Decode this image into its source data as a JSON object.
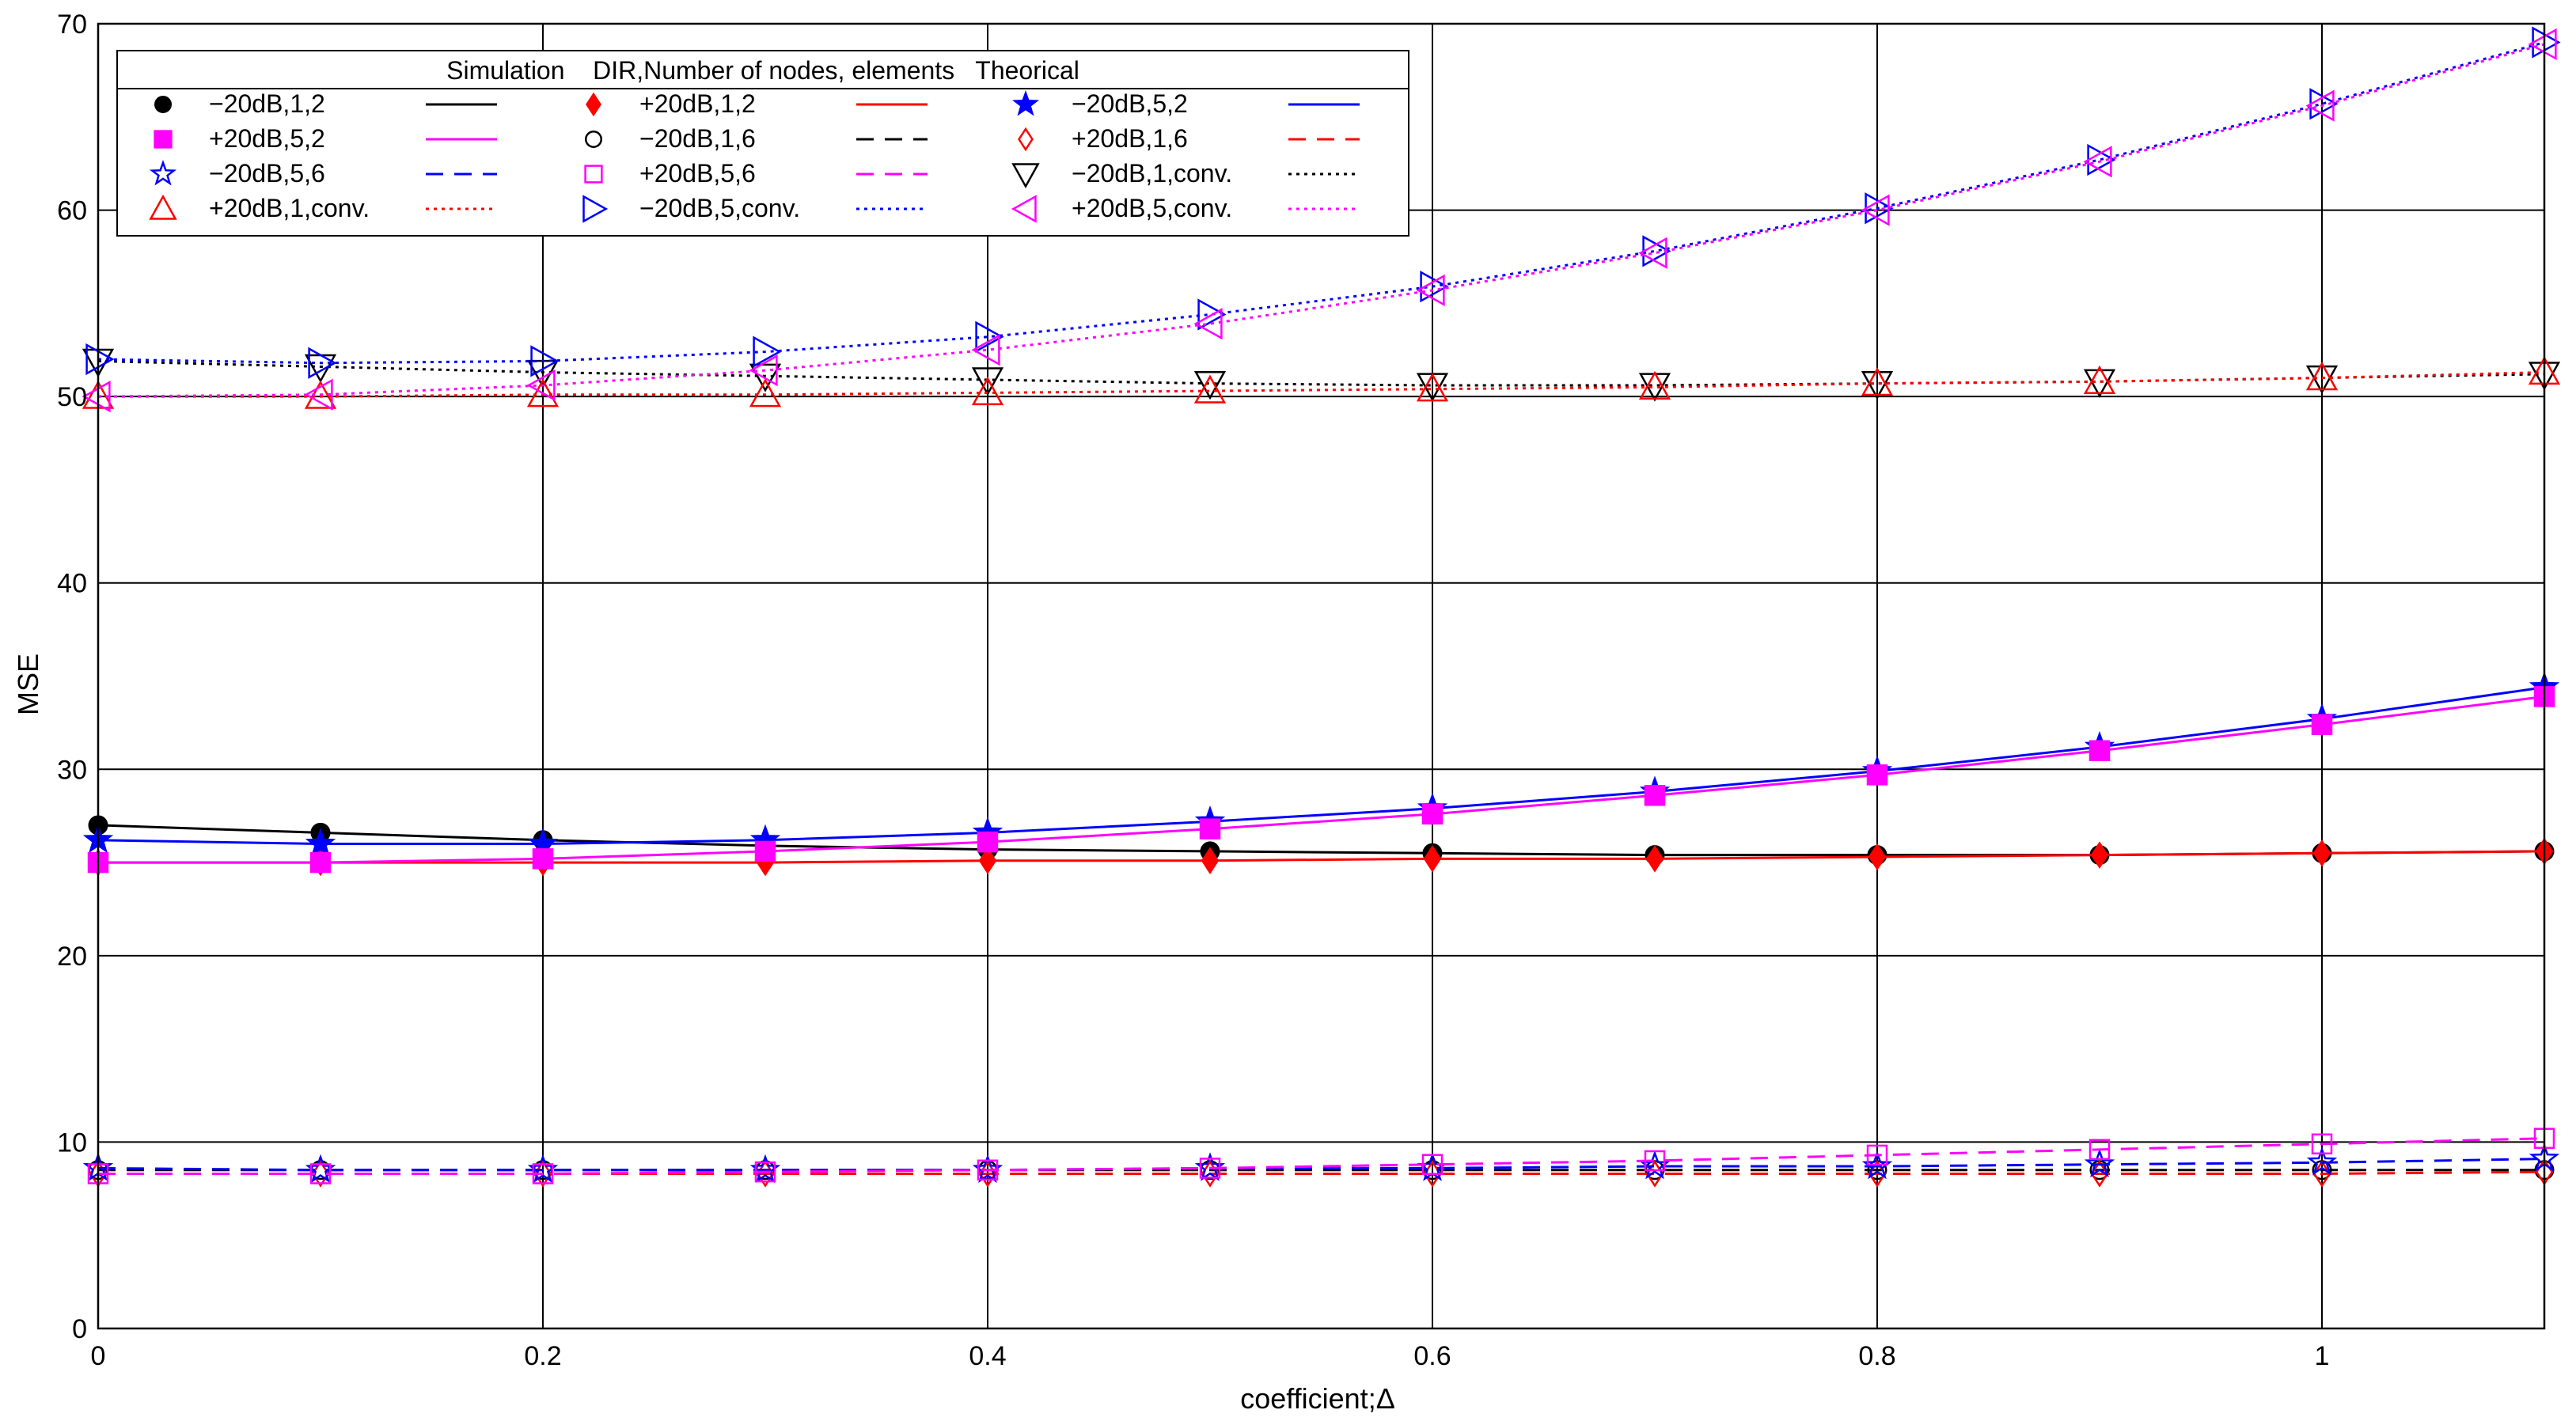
{
  "chart_data": {
    "type": "line",
    "title": "",
    "xlabel": "coefficient;Δ",
    "ylabel": "MSE",
    "xlim": [
      0,
      1.1
    ],
    "ylim": [
      0,
      70
    ],
    "x_ticks": [
      0,
      0.2,
      0.4,
      0.6,
      0.8,
      1
    ],
    "x_tick_labels": [
      "0",
      "0.2",
      "0.4",
      "0.6",
      "0.8",
      "1"
    ],
    "y_ticks": [
      0,
      10,
      20,
      30,
      40,
      50,
      60,
      70
    ],
    "y_tick_labels": [
      "0",
      "10",
      "20",
      "30",
      "40",
      "50",
      "60",
      "70"
    ],
    "grid": true,
    "legend_placement": "top-left",
    "legend_header": "Simulation    DIR,Number of nodes, elements   Theorical",
    "x": [
      0,
      0.1,
      0.2,
      0.3,
      0.4,
      0.5,
      0.6,
      0.7,
      0.8,
      0.9,
      1.0,
      1.1
    ],
    "series": [
      {
        "name": "−20dB,1,2",
        "color": "#000000",
        "marker": "circle-filled",
        "linestyle": "solid",
        "sim": [
          27.0,
          26.6,
          26.2,
          25.9,
          25.7,
          25.6,
          25.5,
          25.4,
          25.4,
          25.4,
          25.5,
          25.6
        ],
        "theory": [
          27.0,
          26.6,
          26.2,
          25.9,
          25.7,
          25.6,
          25.5,
          25.4,
          25.4,
          25.4,
          25.5,
          25.6
        ]
      },
      {
        "name": "+20dB,1,2",
        "color": "#ff0000",
        "marker": "diamond-filled",
        "linestyle": "solid",
        "sim": [
          25.0,
          25.0,
          25.0,
          25.0,
          25.1,
          25.1,
          25.2,
          25.2,
          25.3,
          25.4,
          25.5,
          25.6
        ],
        "theory": [
          25.0,
          25.0,
          25.0,
          25.0,
          25.1,
          25.1,
          25.2,
          25.2,
          25.3,
          25.4,
          25.5,
          25.6
        ]
      },
      {
        "name": "−20dB,5,2",
        "color": "#0000ff",
        "marker": "star-filled",
        "linestyle": "solid",
        "sim": [
          26.2,
          26.0,
          26.0,
          26.2,
          26.6,
          27.2,
          27.9,
          28.8,
          29.9,
          31.2,
          32.7,
          34.4
        ],
        "theory": [
          26.2,
          26.0,
          26.0,
          26.2,
          26.6,
          27.2,
          27.9,
          28.8,
          29.9,
          31.2,
          32.7,
          34.4
        ]
      },
      {
        "name": "+20dB,5,2",
        "color": "#ff00ff",
        "marker": "square-filled",
        "linestyle": "solid",
        "sim": [
          25.0,
          25.0,
          25.2,
          25.6,
          26.1,
          26.8,
          27.6,
          28.6,
          29.7,
          31.0,
          32.4,
          33.9
        ],
        "theory": [
          25.0,
          25.0,
          25.2,
          25.6,
          26.1,
          26.8,
          27.6,
          28.6,
          29.7,
          31.0,
          32.4,
          33.9
        ]
      },
      {
        "name": "−20dB,1,6",
        "color": "#000000",
        "marker": "circle-open",
        "linestyle": "dashed",
        "sim": [
          8.5,
          8.5,
          8.5,
          8.5,
          8.5,
          8.5,
          8.5,
          8.5,
          8.5,
          8.5,
          8.5,
          8.5
        ],
        "theory": [
          8.5,
          8.5,
          8.5,
          8.5,
          8.5,
          8.5,
          8.5,
          8.5,
          8.5,
          8.5,
          8.5,
          8.5
        ]
      },
      {
        "name": "+20dB,1,6",
        "color": "#ff0000",
        "marker": "diamond-open",
        "linestyle": "dashed",
        "sim": [
          8.3,
          8.3,
          8.3,
          8.3,
          8.3,
          8.3,
          8.3,
          8.3,
          8.3,
          8.3,
          8.3,
          8.4
        ],
        "theory": [
          8.3,
          8.3,
          8.3,
          8.3,
          8.3,
          8.3,
          8.3,
          8.3,
          8.3,
          8.3,
          8.3,
          8.4
        ]
      },
      {
        "name": "−20dB,5,6",
        "color": "#0000ff",
        "marker": "star-open",
        "linestyle": "dashed",
        "sim": [
          8.6,
          8.5,
          8.5,
          8.5,
          8.5,
          8.6,
          8.6,
          8.7,
          8.7,
          8.8,
          8.9,
          9.1
        ],
        "theory": [
          8.6,
          8.5,
          8.5,
          8.5,
          8.5,
          8.6,
          8.6,
          8.7,
          8.7,
          8.8,
          8.9,
          9.1
        ]
      },
      {
        "name": "+20dB,5,6",
        "color": "#ff00ff",
        "marker": "square-open",
        "linestyle": "dashed",
        "sim": [
          8.3,
          8.3,
          8.3,
          8.4,
          8.5,
          8.6,
          8.8,
          9.0,
          9.3,
          9.6,
          9.9,
          10.2
        ],
        "theory": [
          8.3,
          8.3,
          8.3,
          8.4,
          8.5,
          8.6,
          8.8,
          9.0,
          9.3,
          9.6,
          9.9,
          10.2
        ]
      },
      {
        "name": "−20dB,1,conv.",
        "color": "#000000",
        "marker": "triangle-down-open",
        "linestyle": "dotted",
        "sim": [
          51.9,
          51.6,
          51.3,
          51.1,
          50.9,
          50.7,
          50.6,
          50.6,
          50.7,
          50.8,
          51.0,
          51.2
        ],
        "theory": [
          51.9,
          51.6,
          51.3,
          51.1,
          50.9,
          50.7,
          50.6,
          50.6,
          50.7,
          50.8,
          51.0,
          51.2
        ]
      },
      {
        "name": "+20dB,1,conv.",
        "color": "#ff0000",
        "marker": "triangle-up-open",
        "linestyle": "dotted",
        "sim": [
          50.0,
          50.0,
          50.1,
          50.1,
          50.2,
          50.3,
          50.4,
          50.5,
          50.7,
          50.8,
          51.0,
          51.3
        ],
        "theory": [
          50.0,
          50.0,
          50.1,
          50.1,
          50.2,
          50.3,
          50.4,
          50.5,
          50.7,
          50.8,
          51.0,
          51.3
        ]
      },
      {
        "name": "−20dB,5,conv.",
        "color": "#0000ff",
        "marker": "triangle-right-open",
        "linestyle": "dotted",
        "sim": [
          52.0,
          51.8,
          51.9,
          52.4,
          53.2,
          54.4,
          55.9,
          57.8,
          60.1,
          62.7,
          65.7,
          69.0
        ],
        "theory": [
          52.0,
          51.8,
          51.9,
          52.4,
          53.2,
          54.4,
          55.9,
          57.8,
          60.1,
          62.7,
          65.7,
          69.0
        ]
      },
      {
        "name": "+20dB,5,conv.",
        "color": "#ff00ff",
        "marker": "triangle-left-open",
        "linestyle": "dotted",
        "sim": [
          50.0,
          50.1,
          50.6,
          51.4,
          52.5,
          53.9,
          55.7,
          57.7,
          60.0,
          62.6,
          65.6,
          68.9
        ],
        "theory": [
          50.0,
          50.1,
          50.6,
          51.4,
          52.5,
          53.9,
          55.7,
          57.7,
          60.0,
          62.6,
          65.6,
          68.9
        ]
      }
    ]
  }
}
